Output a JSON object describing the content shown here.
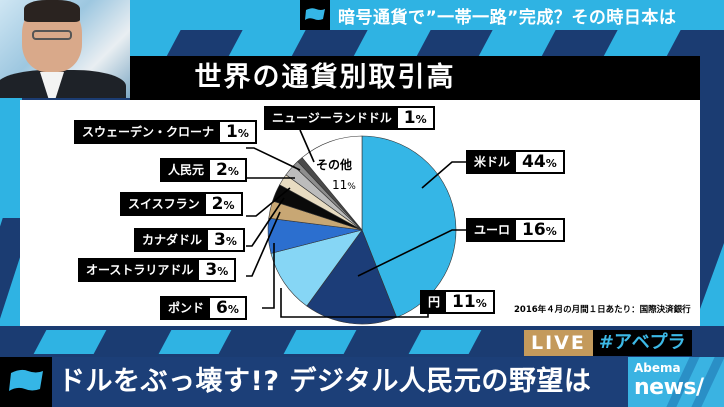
{
  "top_headline": {
    "text": "暗号通貨で”一帯一路”完成？その時日本は",
    "flag_icon": "flag-icon"
  },
  "chart_panel": {
    "title": "世界の通貨別取引高",
    "source_note": "2016年４月の月間１日あたり：国際決済銀行"
  },
  "labels": {
    "usd": {
      "name": "米ドル",
      "pct": "44",
      "unit": "%"
    },
    "eur": {
      "name": "ユーロ",
      "pct": "16",
      "unit": "%"
    },
    "jpy": {
      "name": "円",
      "pct": "11",
      "unit": "%"
    },
    "gbp": {
      "name": "ポンド",
      "pct": "6",
      "unit": "%"
    },
    "aud": {
      "name": "オーストラリアドル",
      "pct": "3",
      "unit": "%"
    },
    "cad": {
      "name": "カナダドル",
      "pct": "3",
      "unit": "%"
    },
    "chf": {
      "name": "スイスフラン",
      "pct": "2",
      "unit": "%"
    },
    "cny": {
      "name": "人民元",
      "pct": "2",
      "unit": "%"
    },
    "sek": {
      "name": "スウェーデン・クローナ",
      "pct": "1",
      "unit": "%"
    },
    "nzd": {
      "name": "ニュージーランドドル",
      "pct": "1",
      "unit": "%"
    },
    "other": {
      "name": "その他",
      "pct": "11",
      "unit": "%"
    }
  },
  "live_badge": {
    "live": "LIVE",
    "hashtag": "#アベプラ"
  },
  "bottom_headline": {
    "text": "ドルをぶっ壊す!? デジタル人民元の野望は"
  },
  "logo": {
    "line1": "Abema",
    "line2": "news/"
  },
  "colors": {
    "brand_light_blue": "#2fb3e3",
    "brand_navy": "#1b3c72",
    "live_gold": "#c49a5c"
  },
  "chart_data": {
    "type": "pie",
    "title": "世界の通貨別取引高",
    "subtitle": "2016年４月の月間１日あたり：国際決済銀行",
    "unit": "%",
    "categories": [
      "米ドル",
      "ユーロ",
      "円",
      "ポンド",
      "オーストラリアドル",
      "カナダドル",
      "スイスフラン",
      "人民元",
      "スウェーデン・クローナ",
      "ニュージーランドドル",
      "その他"
    ],
    "values": [
      44,
      16,
      11,
      6,
      3,
      3,
      2,
      2,
      1,
      1,
      11
    ],
    "colors": [
      "#35b6e6",
      "#1c3d78",
      "#86d6f5",
      "#2c6fcf",
      "#c8a774",
      "#0a0a0a",
      "#e8dcc2",
      "#bcbcbc",
      "#8e8e8e",
      "#4a4a4a",
      "#ffffff"
    ],
    "start_angle_deg": 0,
    "direction": "clockwise",
    "legend_position": "callout labels"
  }
}
